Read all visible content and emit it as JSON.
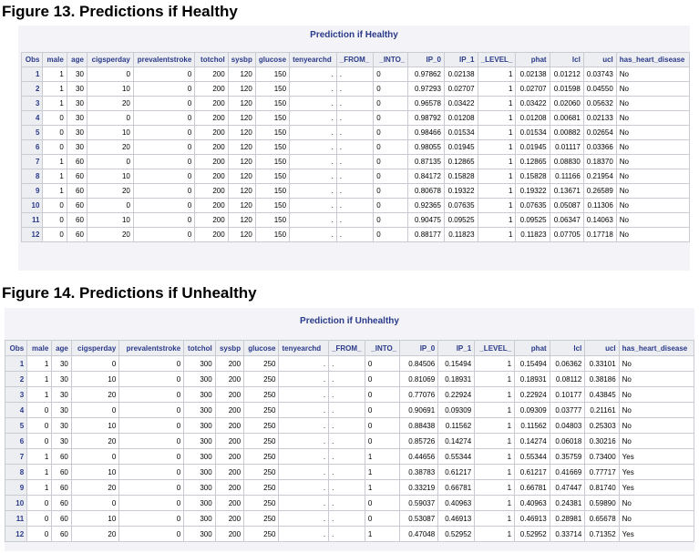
{
  "figure13": {
    "heading": "Figure 13. Predictions if Healthy",
    "caption": "Prediction if Healthy",
    "columns": [
      "Obs",
      "male",
      "age",
      "cigsperday",
      "prevalentstroke",
      "totchol",
      "sysbp",
      "glucose",
      "tenyearchd",
      "_FROM_",
      "_INTO_",
      "IP_0",
      "IP_1",
      "_LEVEL_",
      "phat",
      "lcl",
      "ucl",
      "has_heart_disease"
    ],
    "rows": [
      [
        "1",
        "1",
        "30",
        "0",
        "0",
        "200",
        "120",
        "150",
        ".",
        ".",
        "0",
        "0.97862",
        "0.02138",
        "1",
        "0.02138",
        "0.01212",
        "0.03743",
        "No"
      ],
      [
        "2",
        "1",
        "30",
        "10",
        "0",
        "200",
        "120",
        "150",
        ".",
        ".",
        "0",
        "0.97293",
        "0.02707",
        "1",
        "0.02707",
        "0.01598",
        "0.04550",
        "No"
      ],
      [
        "3",
        "1",
        "30",
        "20",
        "0",
        "200",
        "120",
        "150",
        ".",
        ".",
        "0",
        "0.96578",
        "0.03422",
        "1",
        "0.03422",
        "0.02060",
        "0.05632",
        "No"
      ],
      [
        "4",
        "0",
        "30",
        "0",
        "0",
        "200",
        "120",
        "150",
        ".",
        ".",
        "0",
        "0.98792",
        "0.01208",
        "1",
        "0.01208",
        "0.00681",
        "0.02133",
        "No"
      ],
      [
        "5",
        "0",
        "30",
        "10",
        "0",
        "200",
        "120",
        "150",
        ".",
        ".",
        "0",
        "0.98466",
        "0.01534",
        "1",
        "0.01534",
        "0.00882",
        "0.02654",
        "No"
      ],
      [
        "6",
        "0",
        "30",
        "20",
        "0",
        "200",
        "120",
        "150",
        ".",
        ".",
        "0",
        "0.98055",
        "0.01945",
        "1",
        "0.01945",
        "0.01117",
        "0.03366",
        "No"
      ],
      [
        "7",
        "1",
        "60",
        "0",
        "0",
        "200",
        "120",
        "150",
        ".",
        ".",
        "0",
        "0.87135",
        "0.12865",
        "1",
        "0.12865",
        "0.08830",
        "0.18370",
        "No"
      ],
      [
        "8",
        "1",
        "60",
        "10",
        "0",
        "200",
        "120",
        "150",
        ".",
        ".",
        "0",
        "0.84172",
        "0.15828",
        "1",
        "0.15828",
        "0.11166",
        "0.21954",
        "No"
      ],
      [
        "9",
        "1",
        "60",
        "20",
        "0",
        "200",
        "120",
        "150",
        ".",
        ".",
        "0",
        "0.80678",
        "0.19322",
        "1",
        "0.19322",
        "0.13671",
        "0.26589",
        "No"
      ],
      [
        "10",
        "0",
        "60",
        "0",
        "0",
        "200",
        "120",
        "150",
        ".",
        ".",
        "0",
        "0.92365",
        "0.07635",
        "1",
        "0.07635",
        "0.05087",
        "0.11306",
        "No"
      ],
      [
        "11",
        "0",
        "60",
        "10",
        "0",
        "200",
        "120",
        "150",
        ".",
        ".",
        "0",
        "0.90475",
        "0.09525",
        "1",
        "0.09525",
        "0.06347",
        "0.14063",
        "No"
      ],
      [
        "12",
        "0",
        "60",
        "20",
        "0",
        "200",
        "120",
        "150",
        ".",
        ".",
        "0",
        "0.88177",
        "0.11823",
        "1",
        "0.11823",
        "0.07705",
        "0.17718",
        "No"
      ]
    ]
  },
  "figure14": {
    "heading": "Figure 14. Predictions if Unhealthy",
    "caption": "Prediction if Unhealthy",
    "columns": [
      "Obs",
      "male",
      "age",
      "cigsperday",
      "prevalentstroke",
      "totchol",
      "sysbp",
      "glucose",
      "tenyearchd",
      "_FROM_",
      "_INTO_",
      "IP_0",
      "IP_1",
      "_LEVEL_",
      "phat",
      "lcl",
      "ucl",
      "has_heart_disease"
    ],
    "rows": [
      [
        "1",
        "1",
        "30",
        "0",
        "0",
        "300",
        "200",
        "250",
        ".",
        ".",
        "0",
        "0.84506",
        "0.15494",
        "1",
        "0.15494",
        "0.06362",
        "0.33101",
        "No"
      ],
      [
        "2",
        "1",
        "30",
        "10",
        "0",
        "300",
        "200",
        "250",
        ".",
        ".",
        "0",
        "0.81069",
        "0.18931",
        "1",
        "0.18931",
        "0.08112",
        "0.38186",
        "No"
      ],
      [
        "3",
        "1",
        "30",
        "20",
        "0",
        "300",
        "200",
        "250",
        ".",
        ".",
        "0",
        "0.77076",
        "0.22924",
        "1",
        "0.22924",
        "0.10177",
        "0.43845",
        "No"
      ],
      [
        "4",
        "0",
        "30",
        "0",
        "0",
        "300",
        "200",
        "250",
        ".",
        ".",
        "0",
        "0.90691",
        "0.09309",
        "1",
        "0.09309",
        "0.03777",
        "0.21161",
        "No"
      ],
      [
        "5",
        "0",
        "30",
        "10",
        "0",
        "300",
        "200",
        "250",
        ".",
        ".",
        "0",
        "0.88438",
        "0.11562",
        "1",
        "0.11562",
        "0.04803",
        "0.25303",
        "No"
      ],
      [
        "6",
        "0",
        "30",
        "20",
        "0",
        "300",
        "200",
        "250",
        ".",
        ".",
        "0",
        "0.85726",
        "0.14274",
        "1",
        "0.14274",
        "0.06018",
        "0.30216",
        "No"
      ],
      [
        "7",
        "1",
        "60",
        "0",
        "0",
        "300",
        "200",
        "250",
        ".",
        ".",
        "1",
        "0.44656",
        "0.55344",
        "1",
        "0.55344",
        "0.35759",
        "0.73400",
        "Yes"
      ],
      [
        "8",
        "1",
        "60",
        "10",
        "0",
        "300",
        "200",
        "250",
        ".",
        ".",
        "1",
        "0.38783",
        "0.61217",
        "1",
        "0.61217",
        "0.41669",
        "0.77717",
        "Yes"
      ],
      [
        "9",
        "1",
        "60",
        "20",
        "0",
        "300",
        "200",
        "250",
        ".",
        ".",
        "1",
        "0.33219",
        "0.66781",
        "1",
        "0.66781",
        "0.47447",
        "0.81740",
        "Yes"
      ],
      [
        "10",
        "0",
        "60",
        "0",
        "0",
        "300",
        "200",
        "250",
        ".",
        ".",
        "0",
        "0.59037",
        "0.40963",
        "1",
        "0.40963",
        "0.24381",
        "0.59890",
        "No"
      ],
      [
        "11",
        "0",
        "60",
        "10",
        "0",
        "300",
        "200",
        "250",
        ".",
        ".",
        "0",
        "0.53087",
        "0.46913",
        "1",
        "0.46913",
        "0.28981",
        "0.65678",
        "No"
      ],
      [
        "12",
        "0",
        "60",
        "20",
        "0",
        "300",
        "200",
        "250",
        ".",
        ".",
        "1",
        "0.47048",
        "0.52952",
        "1",
        "0.52952",
        "0.33714",
        "0.71352",
        "Yes"
      ]
    ]
  }
}
